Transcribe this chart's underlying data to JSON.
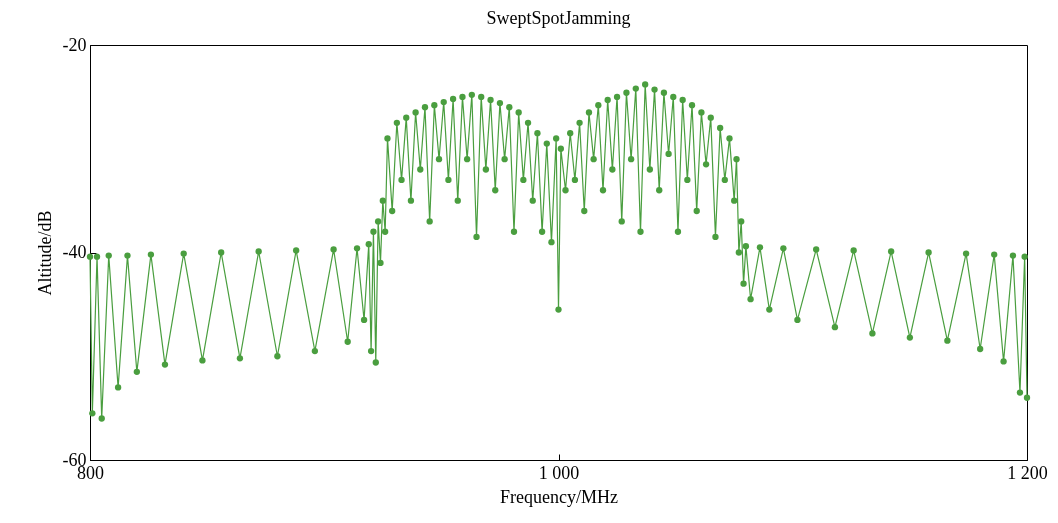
{
  "chart_data": {
    "type": "line",
    "title": "SweptSpotJamming",
    "xlabel": "Frequency/MHz",
    "ylabel": "Altitude/dB",
    "xlim": [
      800,
      1200
    ],
    "xticks": [
      800,
      {
        "value": 1000,
        "label": "1 000"
      },
      {
        "value": 1200,
        "label": "1 200"
      }
    ],
    "ylim": [
      -60,
      -20
    ],
    "yticks": [
      -60,
      -40,
      -20
    ],
    "grid": false,
    "marker": "circle",
    "line_style": "solid",
    "x": [
      800,
      801,
      803,
      805,
      808,
      812,
      816,
      820,
      826,
      832,
      840,
      848,
      856,
      864,
      872,
      880,
      888,
      896,
      904,
      910,
      914,
      917,
      919,
      920,
      921,
      922,
      923,
      924,
      925,
      926,
      927,
      929,
      931,
      933,
      935,
      937,
      939,
      941,
      943,
      945,
      947,
      949,
      951,
      953,
      955,
      957,
      959,
      961,
      963,
      965,
      967,
      969,
      971,
      973,
      975,
      977,
      979,
      981,
      983,
      985,
      987,
      989,
      991,
      993,
      995,
      997,
      999,
      1000,
      1001,
      1003,
      1005,
      1007,
      1009,
      1011,
      1013,
      1015,
      1017,
      1019,
      1021,
      1023,
      1025,
      1027,
      1029,
      1031,
      1033,
      1035,
      1037,
      1039,
      1041,
      1043,
      1045,
      1047,
      1049,
      1051,
      1053,
      1055,
      1057,
      1059,
      1061,
      1063,
      1065,
      1067,
      1069,
      1071,
      1073,
      1075,
      1076,
      1077,
      1078,
      1079,
      1080,
      1082,
      1086,
      1090,
      1096,
      1102,
      1110,
      1118,
      1126,
      1134,
      1142,
      1150,
      1158,
      1166,
      1174,
      1180,
      1186,
      1190,
      1194,
      1197,
      1199,
      1200
    ],
    "series": [
      {
        "color": "#4a9e3f",
        "values": [
          -40.4,
          -55.5,
          -40.4,
          -56,
          -40.3,
          -53,
          -40.3,
          -51.5,
          -40.2,
          -50.8,
          -40.1,
          -50.4,
          -40,
          -50.2,
          -39.9,
          -50,
          -39.8,
          -49.5,
          -39.7,
          -48.6,
          -39.6,
          -46.5,
          -39.2,
          -49.5,
          -38,
          -50.6,
          -37,
          -41,
          -35,
          -38,
          -29,
          -36,
          -27.5,
          -33,
          -27,
          -35,
          -26.5,
          -32,
          -26,
          -37,
          -25.8,
          -31,
          -25.5,
          -33,
          -25.2,
          -35,
          -25,
          -31,
          -24.8,
          -38.5,
          -25,
          -32,
          -25.3,
          -34,
          -25.6,
          -31,
          -26,
          -38,
          -26.5,
          -33,
          -27.5,
          -35,
          -28.5,
          -38,
          -29.5,
          -39,
          -29,
          -45.5,
          -30,
          -34,
          -28.5,
          -33,
          -27.5,
          -36,
          -26.5,
          -31,
          -25.8,
          -34,
          -25.3,
          -32,
          -25,
          -37,
          -24.6,
          -31,
          -24.2,
          -38,
          -23.8,
          -32,
          -24.3,
          -34,
          -24.6,
          -30.5,
          -25,
          -38,
          -25.3,
          -33,
          -25.8,
          -36,
          -26.5,
          -31.5,
          -27,
          -38.5,
          -28,
          -33,
          -29,
          -35,
          -31,
          -40,
          -37,
          -43,
          -39.4,
          -44.5,
          -39.5,
          -45.5,
          -39.6,
          -46.5,
          -39.7,
          -47.2,
          -39.8,
          -47.8,
          -39.9,
          -48.2,
          -40,
          -48.5,
          -40.1,
          -49.3,
          -40.2,
          -50.5,
          -40.3,
          -53.5,
          -40.4,
          -54
        ]
      }
    ]
  }
}
